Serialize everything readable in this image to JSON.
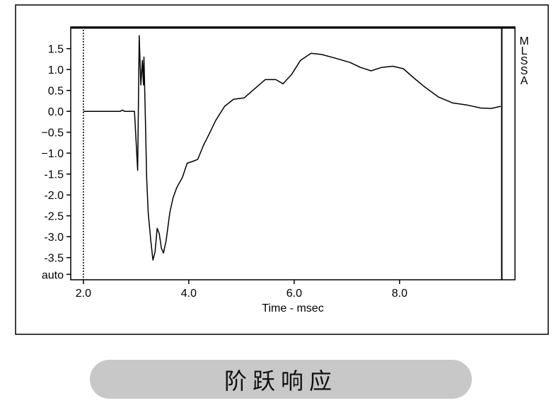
{
  "chart_data": {
    "type": "line",
    "xlabel": "Time - msec",
    "side_label": "MLSSA",
    "caption": "阶跃响应",
    "xlim": [
      1.76,
      10.19
    ],
    "ylim": [
      -4.03,
      2.02
    ],
    "xticks": [
      {
        "value": 2,
        "label": "2.0"
      },
      {
        "value": 4,
        "label": "4.0"
      },
      {
        "value": 6,
        "label": "6.0"
      },
      {
        "value": 8,
        "label": "8.0"
      }
    ],
    "yticks": [
      1.5,
      {
        "value": 1,
        "label": "1.0"
      },
      0.5,
      {
        "value": 0,
        "label": "0.0"
      },
      {
        "value": -0.5,
        "label": "−0.5"
      },
      {
        "value": -1,
        "label": "−1.0"
      },
      -1.5,
      {
        "value": -2,
        "label": "-2.0"
      },
      -2.5,
      {
        "value": -3,
        "label": "-3.0"
      },
      -3.5,
      {
        "value": -3.9,
        "label": "auto"
      }
    ],
    "markers": [
      2.0,
      9.94
    ],
    "series": [
      {
        "name": null,
        "color": "#000000",
        "x": [
          2.0,
          2.7,
          2.74,
          2.78,
          2.97,
          3.03,
          3.06,
          3.09,
          3.12,
          3.14,
          3.15,
          3.18,
          3.2,
          3.23,
          3.28,
          3.32,
          3.36,
          3.4,
          3.44,
          3.48,
          3.52,
          3.57,
          3.64,
          3.7,
          3.77,
          3.88,
          3.97,
          4.07,
          4.17,
          4.28,
          4.38,
          4.51,
          4.68,
          4.85,
          5.05,
          5.25,
          5.45,
          5.65,
          5.79,
          5.95,
          6.12,
          6.32,
          6.52,
          6.79,
          7.06,
          7.26,
          7.46,
          7.66,
          7.87,
          8.07,
          8.27,
          8.47,
          8.74,
          9.01,
          9.28,
          9.54,
          9.74,
          9.92
        ],
        "values": [
          0,
          0,
          0.03,
          0,
          0,
          -1.41,
          1.81,
          0.63,
          1.22,
          0.63,
          1.3,
          -0.39,
          -1.58,
          -2.42,
          -3.1,
          -3.56,
          -3.36,
          -2.8,
          -2.93,
          -3.27,
          -3.39,
          -3.1,
          -2.42,
          -2.08,
          -1.83,
          -1.58,
          -1.24,
          -1.2,
          -1.15,
          -0.81,
          -0.56,
          -0.22,
          0.12,
          0.29,
          0.32,
          0.54,
          0.76,
          0.76,
          0.66,
          0.88,
          1.22,
          1.39,
          1.36,
          1.27,
          1.17,
          1.05,
          0.97,
          1.05,
          1.08,
          1.02,
          0.8,
          0.59,
          0.34,
          0.2,
          0.15,
          0.08,
          0.07,
          0.12
        ]
      }
    ]
  }
}
